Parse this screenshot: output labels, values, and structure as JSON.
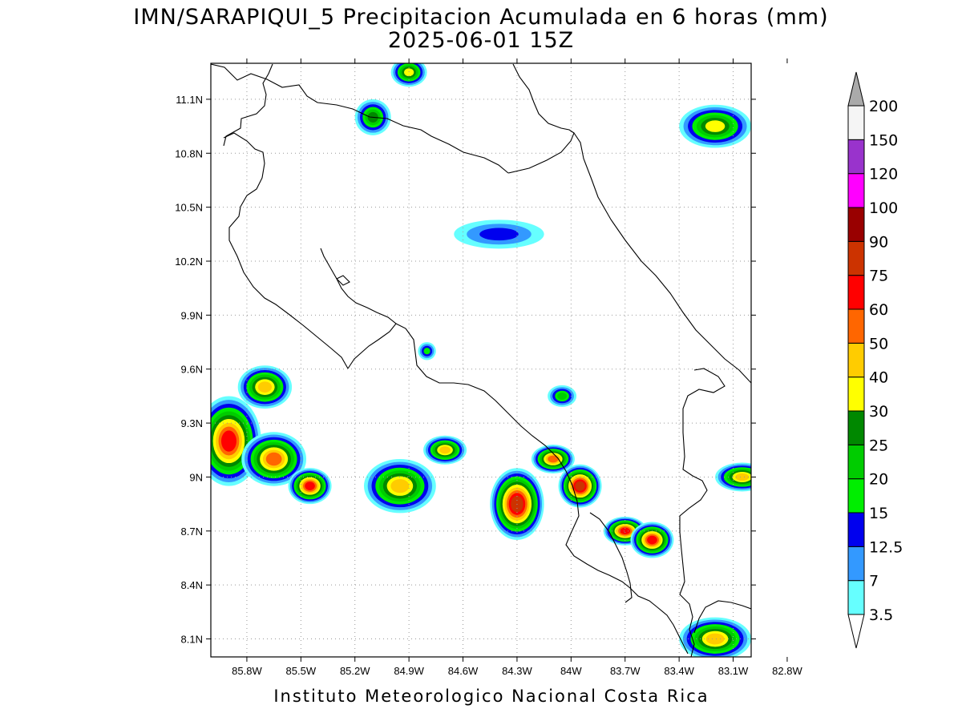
{
  "title": {
    "line1": "IMN/SARAPIQUI_5 Precipitacion Acumulada en 6 horas (mm)",
    "line2": "2025-06-01 15Z"
  },
  "credit": "Instituto Meteorologico Nacional Costa Rica",
  "map": {
    "lon_range": [
      -86.0,
      -83.0
    ],
    "lat_range": [
      8.0,
      11.3
    ],
    "x_ticks": [
      "85.8W",
      "85.5W",
      "85.2W",
      "84.9W",
      "84.6W",
      "84.3W",
      "84W",
      "83.7W",
      "83.4W",
      "83.1W",
      "82.8W"
    ],
    "y_ticks": [
      "11.1N",
      "10.8N",
      "10.5N",
      "10.2N",
      "9.9N",
      "9.6N",
      "9.3N",
      "9N",
      "8.7N",
      "8.4N",
      "8.1N"
    ],
    "grid": "dotted"
  },
  "colorbar": {
    "unit": "mm",
    "levels": [
      "3.5",
      "7",
      "12.5",
      "15",
      "20",
      "25",
      "30",
      "40",
      "50",
      "60",
      "75",
      "90",
      "100",
      "120",
      "150",
      "200"
    ],
    "colors": [
      "#66ffff",
      "#3399ff",
      "#0000ee",
      "#00ee00",
      "#00cc00",
      "#008800",
      "#ffff00",
      "#ffcc00",
      "#ff6600",
      "#ff0000",
      "#cc3300",
      "#990000",
      "#ff00ff",
      "#9933cc",
      "#f5f5f5",
      "#aaaaaa"
    ],
    "under_color": "#ffffff",
    "over_color": "#aaaaaa"
  },
  "precip_cells": [
    {
      "lon": -85.9,
      "lat": 9.2,
      "rx": 0.18,
      "ry": 0.25,
      "max": 60
    },
    {
      "lon": -85.7,
      "lat": 9.5,
      "rx": 0.15,
      "ry": 0.12,
      "max": 40
    },
    {
      "lon": -85.65,
      "lat": 9.1,
      "rx": 0.18,
      "ry": 0.15,
      "max": 50
    },
    {
      "lon": -85.45,
      "lat": 8.95,
      "rx": 0.12,
      "ry": 0.1,
      "max": 60
    },
    {
      "lon": -84.95,
      "lat": 8.95,
      "rx": 0.2,
      "ry": 0.15,
      "max": 40
    },
    {
      "lon": -84.7,
      "lat": 9.15,
      "rx": 0.12,
      "ry": 0.08,
      "max": 40
    },
    {
      "lon": -84.3,
      "lat": 8.85,
      "rx": 0.15,
      "ry": 0.2,
      "max": 75
    },
    {
      "lon": -84.1,
      "lat": 9.1,
      "rx": 0.12,
      "ry": 0.08,
      "max": 50
    },
    {
      "lon": -83.95,
      "lat": 8.95,
      "rx": 0.12,
      "ry": 0.12,
      "max": 75
    },
    {
      "lon": -83.7,
      "lat": 8.7,
      "rx": 0.12,
      "ry": 0.08,
      "max": 60
    },
    {
      "lon": -83.55,
      "lat": 8.65,
      "rx": 0.12,
      "ry": 0.1,
      "max": 60
    },
    {
      "lon": -83.2,
      "lat": 8.1,
      "rx": 0.2,
      "ry": 0.12,
      "max": 40
    },
    {
      "lon": -83.2,
      "lat": 10.95,
      "rx": 0.2,
      "ry": 0.12,
      "max": 30
    },
    {
      "lon": -84.9,
      "lat": 11.25,
      "rx": 0.1,
      "ry": 0.08,
      "max": 30
    },
    {
      "lon": -85.1,
      "lat": 11.0,
      "rx": 0.1,
      "ry": 0.1,
      "max": 25
    },
    {
      "lon": -83.05,
      "lat": 9.0,
      "rx": 0.15,
      "ry": 0.08,
      "max": 40
    },
    {
      "lon": -84.4,
      "lat": 10.35,
      "rx": 0.25,
      "ry": 0.08,
      "max": 12.5
    },
    {
      "lon": -84.05,
      "lat": 9.45,
      "rx": 0.08,
      "ry": 0.06,
      "max": 20
    },
    {
      "lon": -84.8,
      "lat": 9.7,
      "rx": 0.05,
      "ry": 0.05,
      "max": 15
    }
  ]
}
